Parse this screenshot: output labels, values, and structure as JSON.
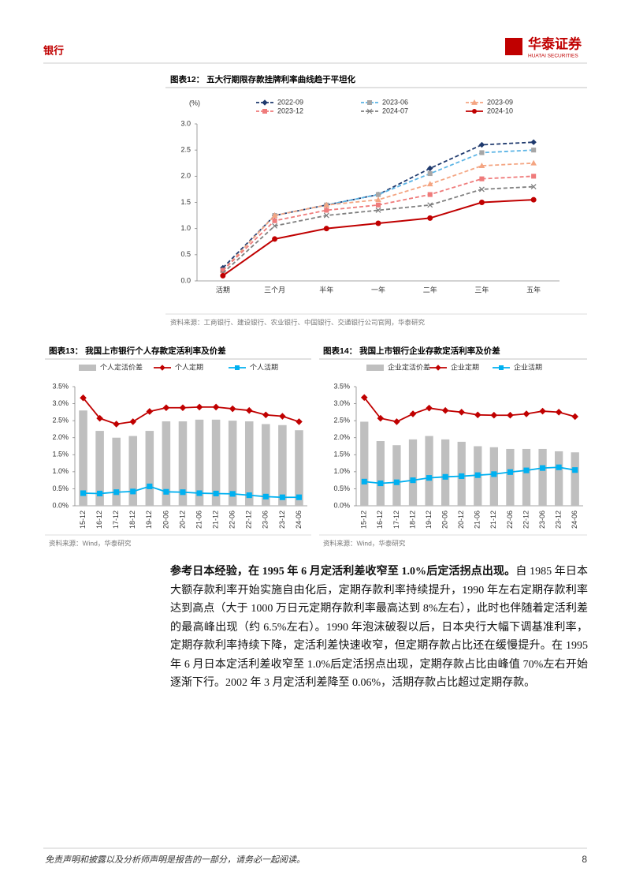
{
  "header": {
    "section": "银行",
    "logo": "华泰证券",
    "logo_sub": "HUATAI SECURITIES"
  },
  "chart_data": [
    {
      "type": "line",
      "title": "图表12：  五大行期限存款挂牌利率曲线趋于平坦化",
      "ylabel": "(%)",
      "categories": [
        "活期",
        "三个月",
        "半年",
        "一年",
        "二年",
        "三年",
        "五年"
      ],
      "ylim": [
        0,
        3
      ],
      "yticks": [
        {
          "value": 0,
          "label": "0.0"
        },
        0.5,
        {
          "value": 1,
          "label": "1.0"
        },
        1.5,
        {
          "value": 2,
          "label": "2.0"
        },
        2.5,
        {
          "value": 3,
          "label": "3.0"
        }
      ],
      "grid": false,
      "series": [
        {
          "name": "2022-09",
          "color": "#1f3a6e",
          "marker": "diamond",
          "dashed": true,
          "values": [
            0.25,
            1.25,
            1.45,
            1.65,
            2.15,
            2.6,
            2.65
          ]
        },
        {
          "name": "2023-06",
          "color": "#5bb4e5",
          "marker_color": "#a6a6a6",
          "marker": "square",
          "dashed": true,
          "values": [
            0.2,
            1.25,
            1.45,
            1.65,
            2.05,
            2.45,
            2.5
          ]
        },
        {
          "name": "2023-09",
          "color": "#f4a582",
          "marker": "triangle",
          "dashed": true,
          "values": [
            0.2,
            1.25,
            1.45,
            1.55,
            1.85,
            2.2,
            2.25
          ]
        },
        {
          "name": "2023-12",
          "color": "#ef7b7b",
          "marker": "square",
          "dashed": true,
          "values": [
            0.2,
            1.15,
            1.35,
            1.45,
            1.65,
            1.95,
            2.0
          ]
        },
        {
          "name": "2024-07",
          "color": "#7f7f7f",
          "marker": "x",
          "dashed": true,
          "values": [
            0.15,
            1.05,
            1.25,
            1.35,
            1.45,
            1.75,
            1.8
          ]
        },
        {
          "name": "2024-10",
          "color": "#c00000",
          "marker": "circle",
          "dashed": false,
          "values": [
            0.1,
            0.8,
            1.0,
            1.1,
            1.2,
            1.5,
            1.55
          ]
        }
      ],
      "source": "资料来源：工商银行、建设银行、农业银行、中国银行、交通银行公司官网，华泰研究"
    },
    {
      "type": "combo",
      "title": "图表13：  我国上市银行个人存款定活利率及价差",
      "categories": [
        "15-12",
        "16-12",
        "17-12",
        "18-12",
        "19-12",
        "20-06",
        "20-12",
        "21-06",
        "21-12",
        "22-06",
        "22-12",
        "23-06",
        "23-12",
        "24-06"
      ],
      "ylim": [
        0,
        3.5
      ],
      "yticks": [
        {
          "value": 0,
          "label": "0.0%"
        },
        {
          "value": 0.5,
          "label": "0.5%"
        },
        {
          "value": 1,
          "label": "1.0%"
        },
        {
          "value": 1.5,
          "label": "1.5%"
        },
        {
          "value": 2,
          "label": "2.0%"
        },
        {
          "value": 2.5,
          "label": "2.5%"
        },
        {
          "value": 3,
          "label": "3.0%"
        },
        {
          "value": 3.5,
          "label": "3.5%"
        }
      ],
      "grid": false,
      "series": [
        {
          "name": "个人定活价差",
          "kind": "bar",
          "color": "#bfbfbf",
          "values": [
            2.8,
            2.2,
            2.0,
            2.05,
            2.2,
            2.48,
            2.48,
            2.53,
            2.53,
            2.5,
            2.48,
            2.4,
            2.37,
            2.22
          ]
        },
        {
          "name": "个人定期",
          "kind": "line",
          "color": "#c00000",
          "marker": "diamond",
          "values": [
            3.17,
            2.57,
            2.4,
            2.47,
            2.77,
            2.88,
            2.88,
            2.9,
            2.9,
            2.85,
            2.8,
            2.67,
            2.63,
            2.47
          ]
        },
        {
          "name": "个人活期",
          "kind": "line",
          "color": "#00b0f0",
          "marker": "square",
          "values": [
            0.37,
            0.36,
            0.4,
            0.42,
            0.57,
            0.41,
            0.4,
            0.37,
            0.36,
            0.35,
            0.31,
            0.27,
            0.25,
            0.25
          ]
        }
      ],
      "source": "资料来源：Wind，华泰研究"
    },
    {
      "type": "combo",
      "title": "图表14：  我国上市银行企业存款定活利率及价差",
      "categories": [
        "15-12",
        "16-12",
        "17-12",
        "18-12",
        "19-12",
        "20-06",
        "20-12",
        "21-06",
        "21-12",
        "22-06",
        "22-12",
        "23-06",
        "23-12",
        "24-06"
      ],
      "ylim": [
        0,
        3.5
      ],
      "yticks": [
        {
          "value": 0,
          "label": "0.0%"
        },
        {
          "value": 0.5,
          "label": "0.5%"
        },
        {
          "value": 1,
          "label": "1.0%"
        },
        {
          "value": 1.5,
          "label": "1.5%"
        },
        {
          "value": 2,
          "label": "2.0%"
        },
        {
          "value": 2.5,
          "label": "2.5%"
        },
        {
          "value": 3,
          "label": "3.0%"
        },
        {
          "value": 3.5,
          "label": "3.5%"
        }
      ],
      "grid": false,
      "series": [
        {
          "name": "企业定活价差",
          "kind": "bar",
          "color": "#bfbfbf",
          "values": [
            2.47,
            1.9,
            1.78,
            1.95,
            2.05,
            1.95,
            1.88,
            1.75,
            1.72,
            1.67,
            1.67,
            1.67,
            1.6,
            1.57
          ]
        },
        {
          "name": "企业定期",
          "kind": "line",
          "color": "#c00000",
          "marker": "diamond",
          "values": [
            3.18,
            2.57,
            2.47,
            2.7,
            2.87,
            2.8,
            2.75,
            2.67,
            2.66,
            2.66,
            2.7,
            2.78,
            2.75,
            2.62
          ]
        },
        {
          "name": "企业活期",
          "kind": "line",
          "color": "#00b0f0",
          "marker": "square",
          "values": [
            0.71,
            0.66,
            0.69,
            0.75,
            0.82,
            0.85,
            0.87,
            0.9,
            0.93,
            0.99,
            1.04,
            1.11,
            1.13,
            1.05
          ]
        }
      ],
      "source": "资料来源：Wind，华泰研究"
    }
  ],
  "body": {
    "lead": "参考日本经验，在 1995 年 6 月定活利差收窄至 1.0%后定活拐点出现。",
    "text": "自 1985 年日本大额存款利率开始实施自由化后，定期存款利率持续提升，1990 年左右定期存款利率达到高点（大于 1000 万日元定期存款利率最高达到 8%左右），此时也伴随着定活利差的最高峰出现（约 6.5%左右）。1990 年泡沫破裂以后，日本央行大幅下调基准利率，定期存款利率持续下降，定活利差快速收窄，但定期存款占比还在缓慢提升。在 1995 年 6 月日本定活利差收窄至 1.0%后定活拐点出现，定期存款占比由峰值 70%左右开始逐渐下行。2002 年 3 月定活利差降至 0.06%，活期存款占比超过定期存款。"
  },
  "footer": {
    "disclaimer": "免责声明和披露以及分析师声明是报告的一部分，请务必一起阅读。",
    "page": "8"
  }
}
